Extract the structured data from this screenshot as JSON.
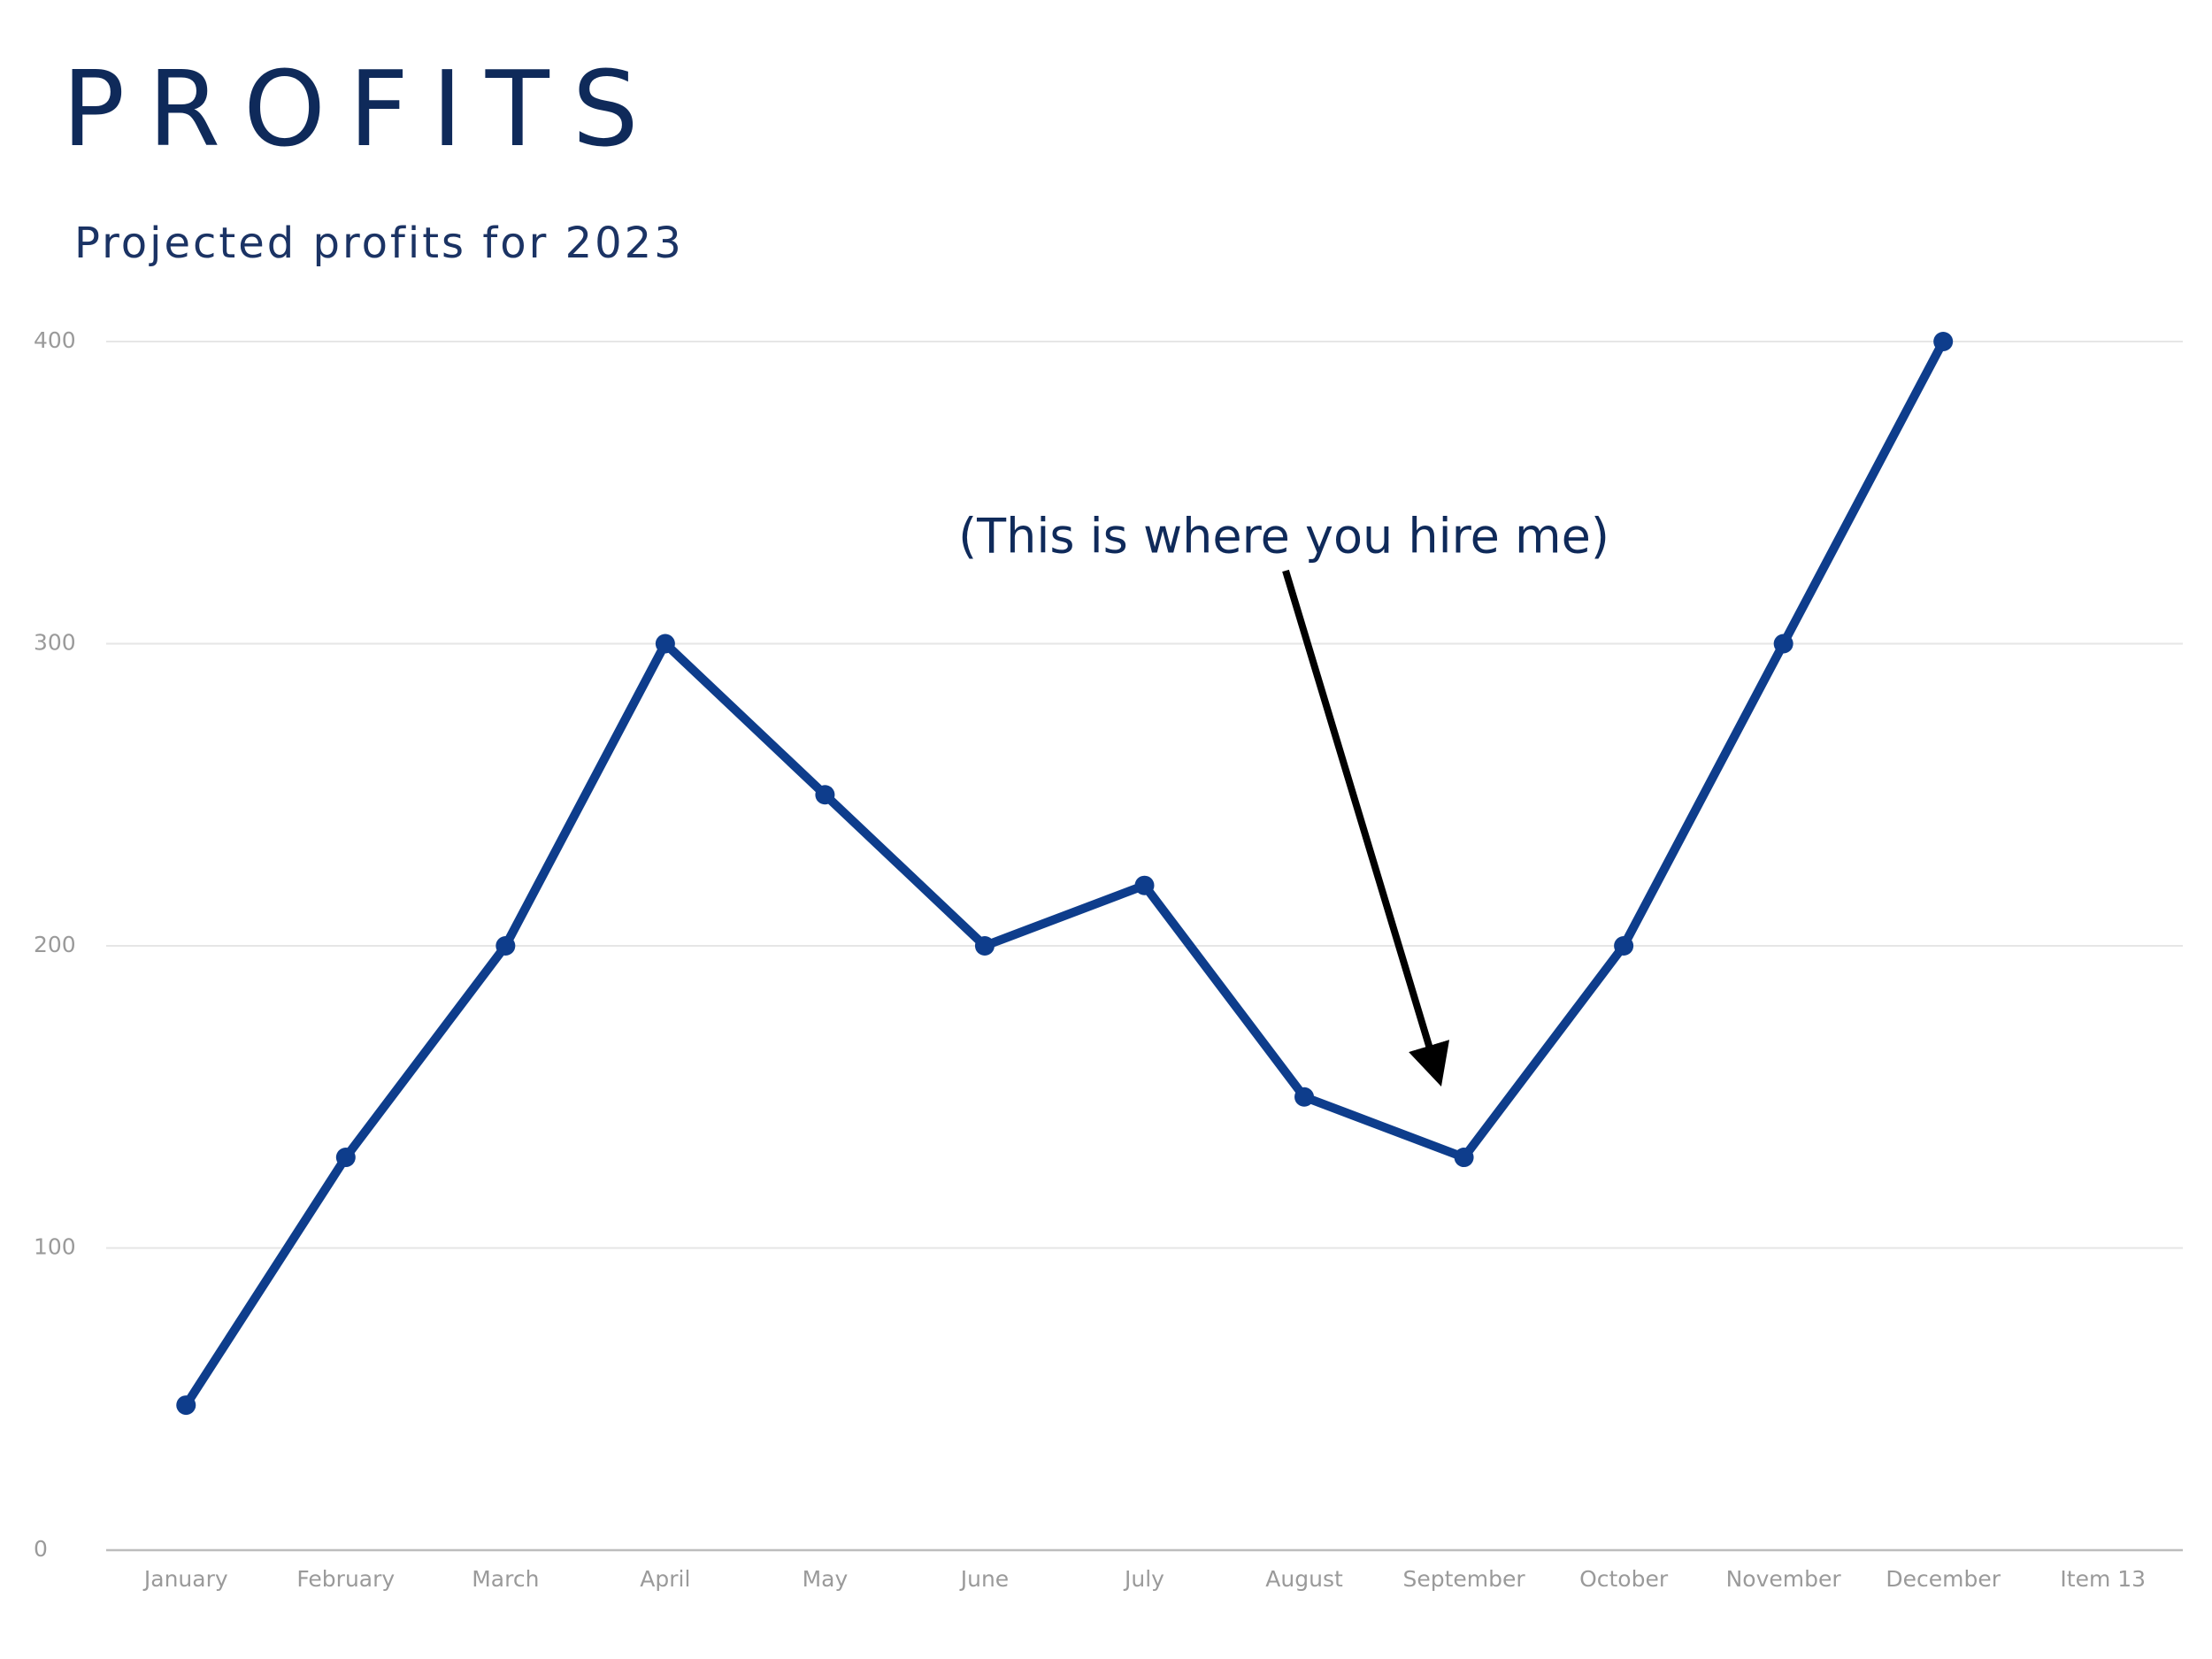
{
  "chart_data": {
    "type": "line",
    "title": "PROFITS",
    "subtitle": "Projected profits for 2023",
    "annotation": "(This is where you hire me)",
    "categories": [
      "January",
      "February",
      "March",
      "April",
      "May",
      "June",
      "July",
      "August",
      "September",
      "October",
      "November",
      "December",
      "Item 13"
    ],
    "series": [
      {
        "name": "Profits",
        "color": "#0e3d8c",
        "values": [
          48,
          130,
          200,
          300,
          250,
          200,
          220,
          150,
          130,
          200,
          300,
          400,
          null
        ]
      }
    ],
    "ylim": [
      0,
      400
    ],
    "yticks": [
      0,
      100,
      200,
      300,
      400
    ],
    "grid": true
  }
}
